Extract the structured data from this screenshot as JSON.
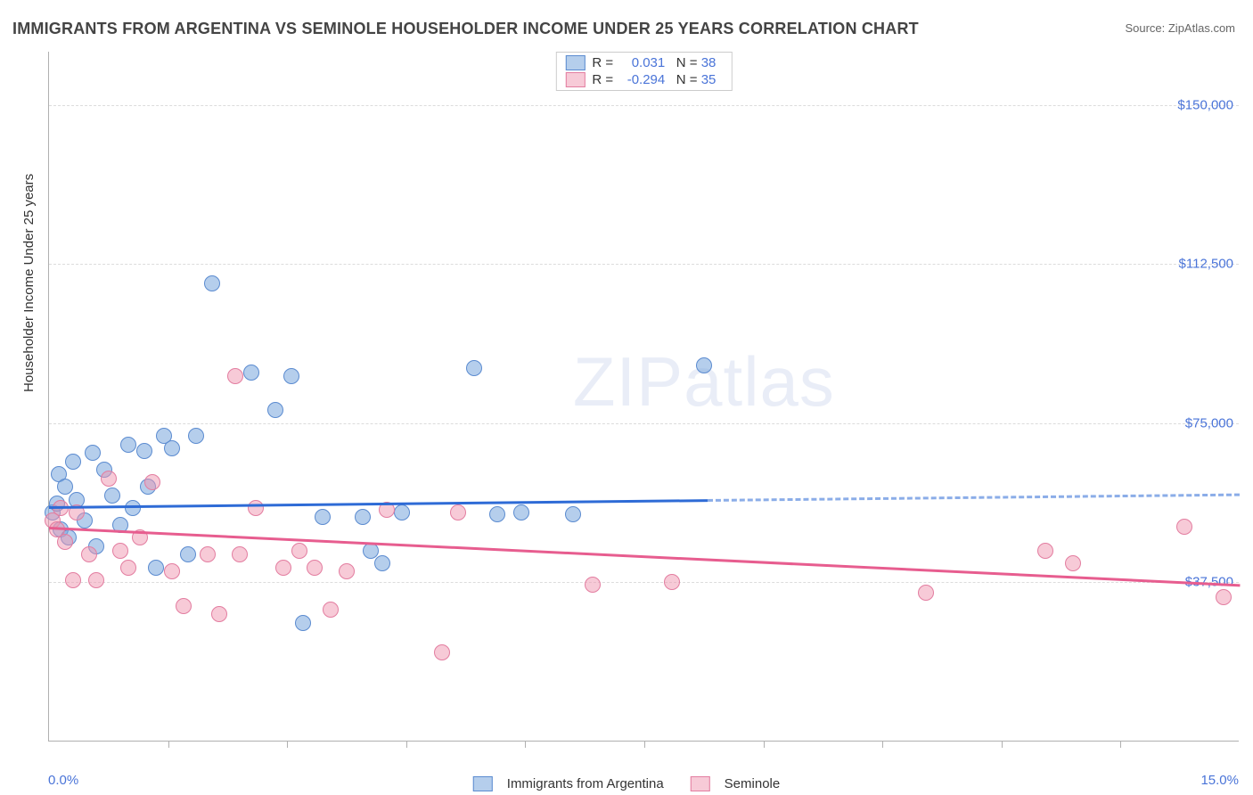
{
  "title": "IMMIGRANTS FROM ARGENTINA VS SEMINOLE HOUSEHOLDER INCOME UNDER 25 YEARS CORRELATION CHART",
  "source_label": "Source: ZipAtlas.com",
  "watermark": "ZIPatlas",
  "chart": {
    "type": "scatter",
    "background_color": "#ffffff",
    "grid_color": "#dcdcdc",
    "axis_color": "#b0b0b0",
    "yaxis_title": "Householder Income Under 25 years",
    "xlim": [
      0.0,
      15.0
    ],
    "ylim": [
      0,
      162500
    ],
    "xticks_minor": [
      1.5,
      3.0,
      4.5,
      6.0,
      7.5,
      9.0,
      10.5,
      12.0,
      13.5
    ],
    "xlabels": [
      {
        "v": 0.0,
        "label": "0.0%"
      },
      {
        "v": 15.0,
        "label": "15.0%"
      }
    ],
    "yticks": [
      {
        "v": 37500,
        "label": "$37,500"
      },
      {
        "v": 75000,
        "label": "$75,000"
      },
      {
        "v": 112500,
        "label": "$112,500"
      },
      {
        "v": 150000,
        "label": "$150,000"
      }
    ],
    "series": [
      {
        "name": "Immigrants from Argentina",
        "marker_fill": "rgba(120,165,220,0.55)",
        "marker_stroke": "#5b8bd0",
        "marker_radius": 9,
        "trend_color": "#2e6bd6",
        "trend_width": 3,
        "trend_solid_xmax": 8.3,
        "r": "0.031",
        "n": "38",
        "trend": {
          "x1": 0.0,
          "y1": 55500,
          "x2": 15.0,
          "y2": 58500
        },
        "points": [
          {
            "x": 0.05,
            "y": 54000
          },
          {
            "x": 0.1,
            "y": 56000
          },
          {
            "x": 0.12,
            "y": 63000
          },
          {
            "x": 0.15,
            "y": 50000
          },
          {
            "x": 0.2,
            "y": 60000
          },
          {
            "x": 0.25,
            "y": 48000
          },
          {
            "x": 0.3,
            "y": 66000
          },
          {
            "x": 0.35,
            "y": 57000
          },
          {
            "x": 0.45,
            "y": 52000
          },
          {
            "x": 0.55,
            "y": 68000
          },
          {
            "x": 0.6,
            "y": 46000
          },
          {
            "x": 0.7,
            "y": 64000
          },
          {
            "x": 0.8,
            "y": 58000
          },
          {
            "x": 0.9,
            "y": 51000
          },
          {
            "x": 1.0,
            "y": 70000
          },
          {
            "x": 1.05,
            "y": 55000
          },
          {
            "x": 1.2,
            "y": 68500
          },
          {
            "x": 1.25,
            "y": 60000
          },
          {
            "x": 1.35,
            "y": 41000
          },
          {
            "x": 1.45,
            "y": 72000
          },
          {
            "x": 1.55,
            "y": 69000
          },
          {
            "x": 1.75,
            "y": 44000
          },
          {
            "x": 1.85,
            "y": 72000
          },
          {
            "x": 2.05,
            "y": 108000
          },
          {
            "x": 2.55,
            "y": 87000
          },
          {
            "x": 2.85,
            "y": 78000
          },
          {
            "x": 3.05,
            "y": 86000
          },
          {
            "x": 3.2,
            "y": 28000
          },
          {
            "x": 3.45,
            "y": 53000
          },
          {
            "x": 3.95,
            "y": 53000
          },
          {
            "x": 4.05,
            "y": 45000
          },
          {
            "x": 4.2,
            "y": 42000
          },
          {
            "x": 4.45,
            "y": 54000
          },
          {
            "x": 5.35,
            "y": 88000
          },
          {
            "x": 5.65,
            "y": 53500
          },
          {
            "x": 5.95,
            "y": 54000
          },
          {
            "x": 6.6,
            "y": 53500
          },
          {
            "x": 8.25,
            "y": 88500
          }
        ]
      },
      {
        "name": "Seminole",
        "marker_fill": "rgba(240,150,175,0.50)",
        "marker_stroke": "#e37da0",
        "marker_radius": 9,
        "trend_color": "#e75d8f",
        "trend_width": 3,
        "trend_solid_xmax": 15.0,
        "r": "-0.294",
        "n": "35",
        "trend": {
          "x1": 0.0,
          "y1": 50500,
          "x2": 15.0,
          "y2": 37000
        },
        "points": [
          {
            "x": 0.05,
            "y": 52000
          },
          {
            "x": 0.1,
            "y": 50000
          },
          {
            "x": 0.15,
            "y": 55000
          },
          {
            "x": 0.2,
            "y": 47000
          },
          {
            "x": 0.3,
            "y": 38000
          },
          {
            "x": 0.35,
            "y": 54000
          },
          {
            "x": 0.5,
            "y": 44000
          },
          {
            "x": 0.6,
            "y": 38000
          },
          {
            "x": 0.75,
            "y": 62000
          },
          {
            "x": 0.9,
            "y": 45000
          },
          {
            "x": 1.0,
            "y": 41000
          },
          {
            "x": 1.15,
            "y": 48000
          },
          {
            "x": 1.3,
            "y": 61000
          },
          {
            "x": 1.55,
            "y": 40000
          },
          {
            "x": 1.7,
            "y": 32000
          },
          {
            "x": 2.0,
            "y": 44000
          },
          {
            "x": 2.15,
            "y": 30000
          },
          {
            "x": 2.35,
            "y": 86000
          },
          {
            "x": 2.4,
            "y": 44000
          },
          {
            "x": 2.6,
            "y": 55000
          },
          {
            "x": 2.95,
            "y": 41000
          },
          {
            "x": 3.15,
            "y": 45000
          },
          {
            "x": 3.35,
            "y": 41000
          },
          {
            "x": 3.55,
            "y": 31000
          },
          {
            "x": 3.75,
            "y": 40000
          },
          {
            "x": 4.25,
            "y": 54500
          },
          {
            "x": 4.95,
            "y": 21000
          },
          {
            "x": 5.15,
            "y": 54000
          },
          {
            "x": 6.85,
            "y": 37000
          },
          {
            "x": 7.85,
            "y": 37500
          },
          {
            "x": 11.05,
            "y": 35000
          },
          {
            "x": 12.55,
            "y": 45000
          },
          {
            "x": 12.9,
            "y": 42000
          },
          {
            "x": 14.3,
            "y": 50500
          },
          {
            "x": 14.8,
            "y": 34000
          }
        ]
      }
    ],
    "bottom_legend": [
      {
        "label": "Immigrants from Argentina",
        "fill": "rgba(120,165,220,0.55)",
        "stroke": "#5b8bd0"
      },
      {
        "label": "Seminole",
        "fill": "rgba(240,150,175,0.50)",
        "stroke": "#e37da0"
      }
    ]
  }
}
